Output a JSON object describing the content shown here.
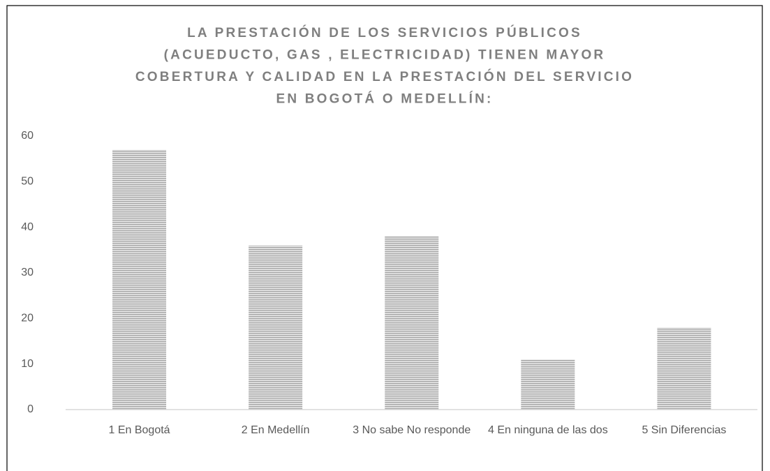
{
  "chart_data": {
    "type": "bar",
    "title": [
      "LA PRESTACIÓN DE LOS SERVICIOS PÚBLICOS",
      "(ACUEDUCTO, GAS , ELECTRICIDAD) TIENEN MAYOR",
      "COBERTURA Y CALIDAD EN LA PRESTACIÓN DEL SERVICIO",
      "EN BOGOTÁ O MEDELLÍN:"
    ],
    "categories": [
      "1 En Bogotá",
      "2 En Medellín",
      "3 No sabe No responde",
      "4 En ninguna de las dos",
      "5 Sin Diferencias"
    ],
    "values": [
      57,
      36,
      38,
      11,
      18
    ],
    "color": "#a6a6a6",
    "ylim": [
      0,
      60
    ],
    "yticks": [
      0,
      10,
      20,
      30,
      40,
      50,
      60
    ],
    "grid": false
  }
}
